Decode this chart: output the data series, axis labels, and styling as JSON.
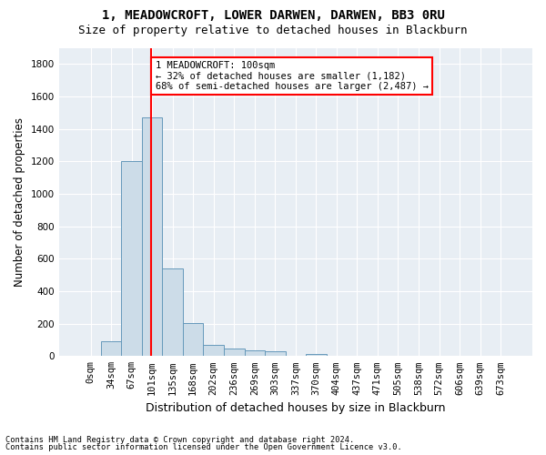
{
  "title_line1": "1, MEADOWCROFT, LOWER DARWEN, DARWEN, BB3 0RU",
  "title_line2": "Size of property relative to detached houses in Blackburn",
  "xlabel": "Distribution of detached houses by size in Blackburn",
  "ylabel": "Number of detached properties",
  "footnote1": "Contains HM Land Registry data © Crown copyright and database right 2024.",
  "footnote2": "Contains public sector information licensed under the Open Government Licence v3.0.",
  "bar_labels": [
    "0sqm",
    "34sqm",
    "67sqm",
    "101sqm",
    "135sqm",
    "168sqm",
    "202sqm",
    "236sqm",
    "269sqm",
    "303sqm",
    "337sqm",
    "370sqm",
    "404sqm",
    "437sqm",
    "471sqm",
    "505sqm",
    "538sqm",
    "572sqm",
    "606sqm",
    "639sqm",
    "673sqm"
  ],
  "bar_values": [
    0,
    90,
    1200,
    1470,
    540,
    205,
    68,
    47,
    34,
    28,
    0,
    15,
    0,
    0,
    0,
    0,
    0,
    0,
    0,
    0,
    0
  ],
  "bar_color": "#ccdce8",
  "bar_edge_color": "#6699bb",
  "bar_width": 1.0,
  "property_line_x": 2.97,
  "annotation_text": "1 MEADOWCROFT: 100sqm\n← 32% of detached houses are smaller (1,182)\n68% of semi-detached houses are larger (2,487) →",
  "annotation_box_color": "white",
  "annotation_box_edge": "red",
  "property_line_color": "red",
  "ylim": [
    0,
    1900
  ],
  "yticks": [
    0,
    200,
    400,
    600,
    800,
    1000,
    1200,
    1400,
    1600,
    1800
  ],
  "background_color": "#e8eef4",
  "grid_color": "white",
  "title_fontsize": 10,
  "subtitle_fontsize": 9,
  "axis_label_fontsize": 8.5,
  "tick_fontsize": 7.5,
  "annotation_fontsize": 7.5
}
